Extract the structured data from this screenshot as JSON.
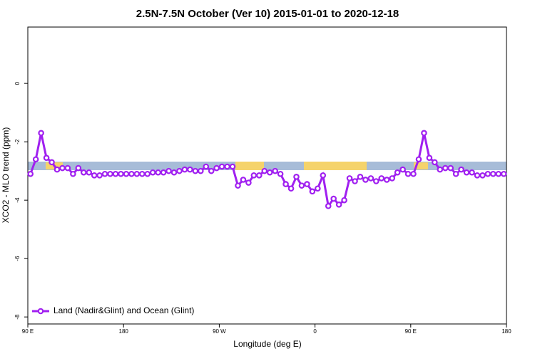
{
  "chart_data": {
    "type": "line",
    "title": "2.5N-7.5N October (Ver 10)   2015-01-01 to 2020-12-18",
    "x_label": "Longitude (deg E)",
    "y_label": "XCO2 - MLO trend (ppm)",
    "xlim": [
      90,
      540
    ],
    "xticks": [
      {
        "value": 90,
        "label": "90 E"
      },
      180,
      {
        "value": 270,
        "label": "90 W"
      },
      {
        "value": 360,
        "label": "0"
      },
      {
        "value": 450,
        "label": "90 E"
      },
      {
        "value": 540,
        "label": "180"
      }
    ],
    "ylim": [
      -8.24,
      1.93
    ],
    "yticks": [
      0,
      -2,
      -4,
      -6,
      -8
    ],
    "legend": "bottom-left",
    "x": [
      92.5,
      97.5,
      102.5,
      107.5,
      112.5,
      117.5,
      122.5,
      127.5,
      132.5,
      137.5,
      142.5,
      147.5,
      152.5,
      157.5,
      162.5,
      167.5,
      172.5,
      177.5,
      182.5,
      187.5,
      192.5,
      197.5,
      202.5,
      207.5,
      212.5,
      217.5,
      222.5,
      227.5,
      232.5,
      237.5,
      242.5,
      247.5,
      252.5,
      257.5,
      262.5,
      267.5,
      272.5,
      277.5,
      282.5,
      287.5,
      292.5,
      297.5,
      302.5,
      307.5,
      312.5,
      317.5,
      322.5,
      327.5,
      332.5,
      337.5,
      342.5,
      347.5,
      352.5,
      357.5,
      362.5,
      367.5,
      372.5,
      377.5,
      382.5,
      387.5,
      392.5,
      397.5,
      402.5,
      407.5,
      412.5,
      417.5,
      422.5,
      427.5,
      432.5,
      437.5,
      442.5,
      447.5,
      452.5,
      457.5,
      462.5,
      467.5,
      472.5,
      477.5,
      482.5,
      487.5,
      492.5,
      497.5,
      502.5,
      507.5,
      512.5,
      517.5,
      522.5,
      527.5,
      532.5,
      537.5
    ],
    "series": [
      {
        "name": "Land (Nadir&Glint) and Ocean (Glint)",
        "color": "#a020f0",
        "values": [
          -3.1,
          -2.6,
          -1.7,
          -2.55,
          -2.7,
          -2.95,
          -2.9,
          -2.9,
          -3.1,
          -2.9,
          -3.05,
          -3.05,
          -3.15,
          -3.15,
          -3.1,
          -3.1,
          -3.1,
          -3.1,
          -3.1,
          -3.1,
          -3.1,
          -3.1,
          -3.1,
          -3.05,
          -3.05,
          -3.05,
          -3.0,
          -3.05,
          -3.0,
          -2.95,
          -2.95,
          -3.0,
          -3.0,
          -2.85,
          -3.0,
          -2.9,
          -2.85,
          -2.85,
          -2.85,
          -3.5,
          -3.3,
          -3.4,
          -3.15,
          -3.15,
          -3.0,
          -3.05,
          -3.0,
          -3.1,
          -3.45,
          -3.6,
          -3.2,
          -3.5,
          -3.45,
          -3.7,
          -3.6,
          -3.15,
          -4.2,
          -3.95,
          -4.15,
          -4.0,
          -3.25,
          -3.35,
          -3.2,
          -3.3,
          -3.25,
          -3.35,
          -3.25,
          -3.3,
          -3.25,
          -3.05,
          -2.95,
          -3.1,
          -3.1,
          -2.6,
          -1.7,
          -2.55,
          -2.7,
          -2.95,
          -2.9,
          -2.9,
          -3.1,
          -2.95,
          -3.05,
          -3.05,
          -3.15,
          -3.15,
          -3.1,
          -3.1,
          -3.1,
          -3.1
        ]
      }
    ]
  }
}
